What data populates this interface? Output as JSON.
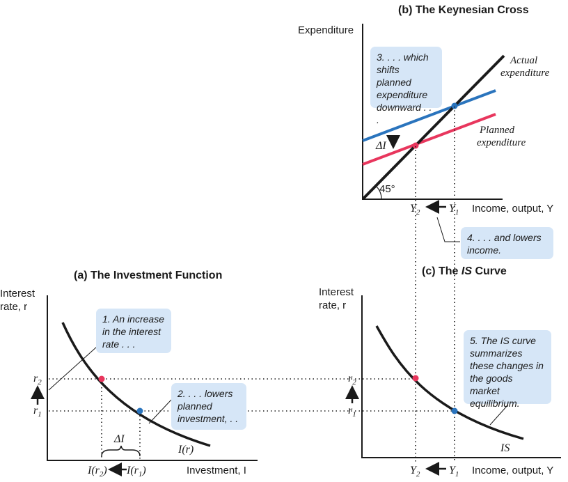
{
  "panel_b": {
    "title": "(b) The Keynesian Cross",
    "y_axis_label": "Expenditure",
    "x_axis_label": "Income, output, Y",
    "actual_label_1": "Actual",
    "actual_label_2": "expenditure",
    "planned_label_1": "Planned",
    "planned_label_2": "expenditure",
    "angle_label": "45°",
    "delta_label": "ΔI",
    "y2_label": "Y",
    "y2_sub": "2",
    "y1_label": "Y",
    "y1_sub": "1",
    "callout_3": "3. . . . which shifts planned expenditure downward . . .",
    "callout_4": "4. . . . and lowers income."
  },
  "panel_a": {
    "title": "(a) The Investment Function",
    "y_axis_label_1": "Interest",
    "y_axis_label_2": "rate, r",
    "x_axis_label": "Investment, I",
    "curve_label": "I(r)",
    "r2_label": "r",
    "r2_sub": "2",
    "r1_label": "r",
    "r1_sub": "1",
    "ir2_label": "I(r",
    "ir2_sub": "2",
    "ir1_label": "I(r",
    "ir1_sub": "1",
    "close_paren": ")",
    "delta_label": "ΔI",
    "callout_1": "1. An increase in the interest rate . . .",
    "callout_2": "2. . . . lowers planned investment, . . ."
  },
  "panel_c": {
    "title_prefix": "(c) The ",
    "title_italic": "IS",
    "title_suffix": " Curve",
    "y_axis_label_1": "Interest",
    "y_axis_label_2": "rate, r",
    "x_axis_label": "Income, output, Y",
    "curve_label": "IS",
    "r2_label": "r",
    "r2_sub": "2",
    "r1_label": "r",
    "r1_sub": "1",
    "y2_label": "Y",
    "y2_sub": "2",
    "y1_label": "Y",
    "y1_sub": "1",
    "callout_5": "5. The IS curve summarizes these changes in the goods market equilibrium."
  },
  "colors": {
    "blue_line": "#2a74bd",
    "red_line": "#e8365d",
    "callout_bg": "#d6e6f7",
    "axis": "#1a1a1a"
  }
}
